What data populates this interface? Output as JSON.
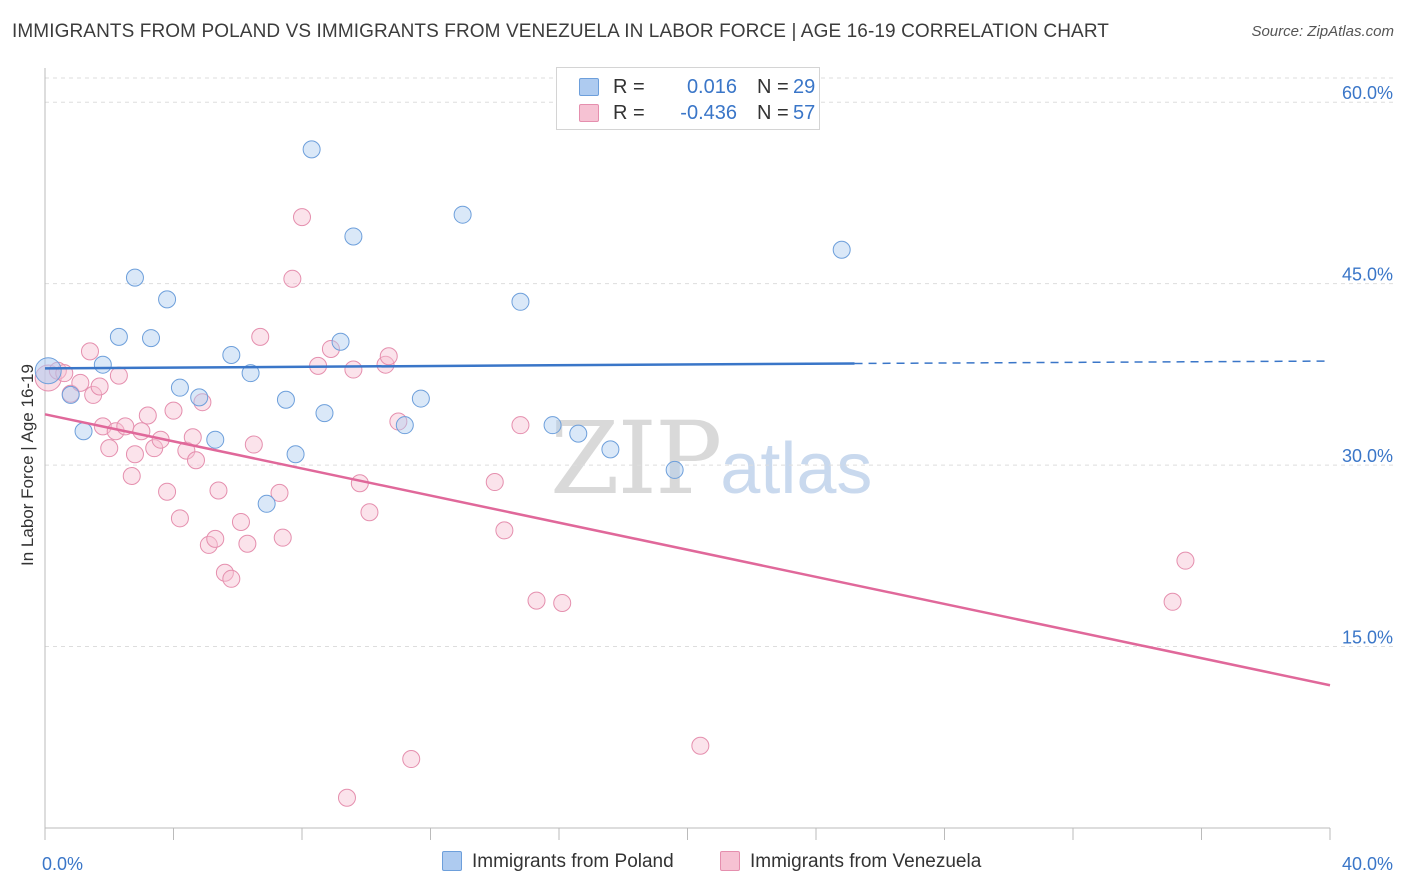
{
  "title": "IMMIGRANTS FROM POLAND VS IMMIGRANTS FROM VENEZUELA IN LABOR FORCE | AGE 16-19 CORRELATION CHART",
  "source": "Source: ZipAtlas.com",
  "watermark": {
    "zip": "ZIP",
    "atlas": "atlas"
  },
  "legend": {
    "rows": [
      {
        "r_label": "R =",
        "r_value": "0.016",
        "n_label": "N =",
        "n_value": "29"
      },
      {
        "r_label": "R =",
        "r_value": "-0.436",
        "n_label": "N =",
        "n_value": "57"
      }
    ]
  },
  "colors": {
    "poland_fill": "#aecbf0",
    "poland_stroke": "#6d9fdb",
    "poland_line": "#3a76c8",
    "venezuela_fill": "#f6c2d3",
    "venezuela_stroke": "#e58fae",
    "venezuela_line": "#e0689a",
    "tick_label": "#3a76c8",
    "grid": "#dddddd"
  },
  "chart_data": {
    "type": "scatter",
    "title": "IMMIGRANTS FROM POLAND VS IMMIGRANTS FROM VENEZUELA IN LABOR FORCE | AGE 16-19 CORRELATION CHART",
    "xlabel": "",
    "ylabel": "In Labor Force | Age 16-19",
    "xlim": [
      0,
      40
    ],
    "ylim": [
      0,
      62
    ],
    "x_tick_labels": [
      "0.0%",
      "40.0%"
    ],
    "y_ticks": [
      15,
      30,
      45,
      60
    ],
    "y_tick_labels": [
      "15.0%",
      "30.0%",
      "45.0%",
      "60.0%"
    ],
    "grid": true,
    "legend_position": "bottom",
    "series": [
      {
        "name": "Immigrants from Poland",
        "points": [
          [
            0.1,
            37.8
          ],
          [
            0.8,
            35.8
          ],
          [
            1.2,
            32.8
          ],
          [
            1.8,
            38.3
          ],
          [
            2.3,
            40.6
          ],
          [
            2.8,
            45.5
          ],
          [
            3.3,
            40.5
          ],
          [
            3.8,
            43.7
          ],
          [
            4.2,
            36.4
          ],
          [
            4.8,
            35.6
          ],
          [
            5.3,
            32.1
          ],
          [
            5.8,
            39.1
          ],
          [
            6.4,
            37.6
          ],
          [
            6.9,
            26.8
          ],
          [
            7.5,
            35.4
          ],
          [
            7.8,
            30.9
          ],
          [
            8.3,
            56.1
          ],
          [
            8.7,
            34.3
          ],
          [
            9.2,
            40.2
          ],
          [
            9.6,
            48.9
          ],
          [
            11.2,
            33.3
          ],
          [
            11.7,
            35.5
          ],
          [
            13.0,
            50.7
          ],
          [
            14.8,
            43.5
          ],
          [
            15.8,
            33.3
          ],
          [
            16.6,
            32.6
          ],
          [
            17.6,
            31.3
          ],
          [
            19.6,
            29.6
          ],
          [
            24.8,
            47.8
          ]
        ],
        "trend": {
          "x": [
            0,
            25.2,
            40
          ],
          "y": [
            38.0,
            38.4,
            38.6
          ],
          "solid_until": 25.2
        }
      },
      {
        "name": "Immigrants from Venezuela",
        "points": [
          [
            0.1,
            37.2
          ],
          [
            0.4,
            37.8
          ],
          [
            0.6,
            37.6
          ],
          [
            0.8,
            35.9
          ],
          [
            1.1,
            36.8
          ],
          [
            1.4,
            39.4
          ],
          [
            1.5,
            35.8
          ],
          [
            1.7,
            36.5
          ],
          [
            1.8,
            33.2
          ],
          [
            2.0,
            31.4
          ],
          [
            2.2,
            32.8
          ],
          [
            2.3,
            37.4
          ],
          [
            2.5,
            33.2
          ],
          [
            2.7,
            29.1
          ],
          [
            2.8,
            30.9
          ],
          [
            3.0,
            32.8
          ],
          [
            3.2,
            34.1
          ],
          [
            3.4,
            31.4
          ],
          [
            3.6,
            32.1
          ],
          [
            3.8,
            27.8
          ],
          [
            4.0,
            34.5
          ],
          [
            4.2,
            25.6
          ],
          [
            4.4,
            31.2
          ],
          [
            4.6,
            32.3
          ],
          [
            4.7,
            30.4
          ],
          [
            4.9,
            35.2
          ],
          [
            5.1,
            23.4
          ],
          [
            5.3,
            23.9
          ],
          [
            5.4,
            27.9
          ],
          [
            5.6,
            21.1
          ],
          [
            5.8,
            20.6
          ],
          [
            6.1,
            25.3
          ],
          [
            6.3,
            23.5
          ],
          [
            6.5,
            31.7
          ],
          [
            6.7,
            40.6
          ],
          [
            7.3,
            27.7
          ],
          [
            7.4,
            24.0
          ],
          [
            7.7,
            45.4
          ],
          [
            8.0,
            50.5
          ],
          [
            8.5,
            38.2
          ],
          [
            8.9,
            39.6
          ],
          [
            9.4,
            2.5
          ],
          [
            9.6,
            37.9
          ],
          [
            9.8,
            28.5
          ],
          [
            10.1,
            26.1
          ],
          [
            10.6,
            38.3
          ],
          [
            10.7,
            39.0
          ],
          [
            11.0,
            33.6
          ],
          [
            11.4,
            5.7
          ],
          [
            14.0,
            28.6
          ],
          [
            14.3,
            24.6
          ],
          [
            14.8,
            33.3
          ],
          [
            15.3,
            18.8
          ],
          [
            16.1,
            18.6
          ],
          [
            20.4,
            6.8
          ],
          [
            35.1,
            18.7
          ],
          [
            35.5,
            22.1
          ]
        ],
        "trend": {
          "x": [
            0,
            40
          ],
          "y": [
            34.2,
            11.8
          ]
        }
      }
    ]
  }
}
